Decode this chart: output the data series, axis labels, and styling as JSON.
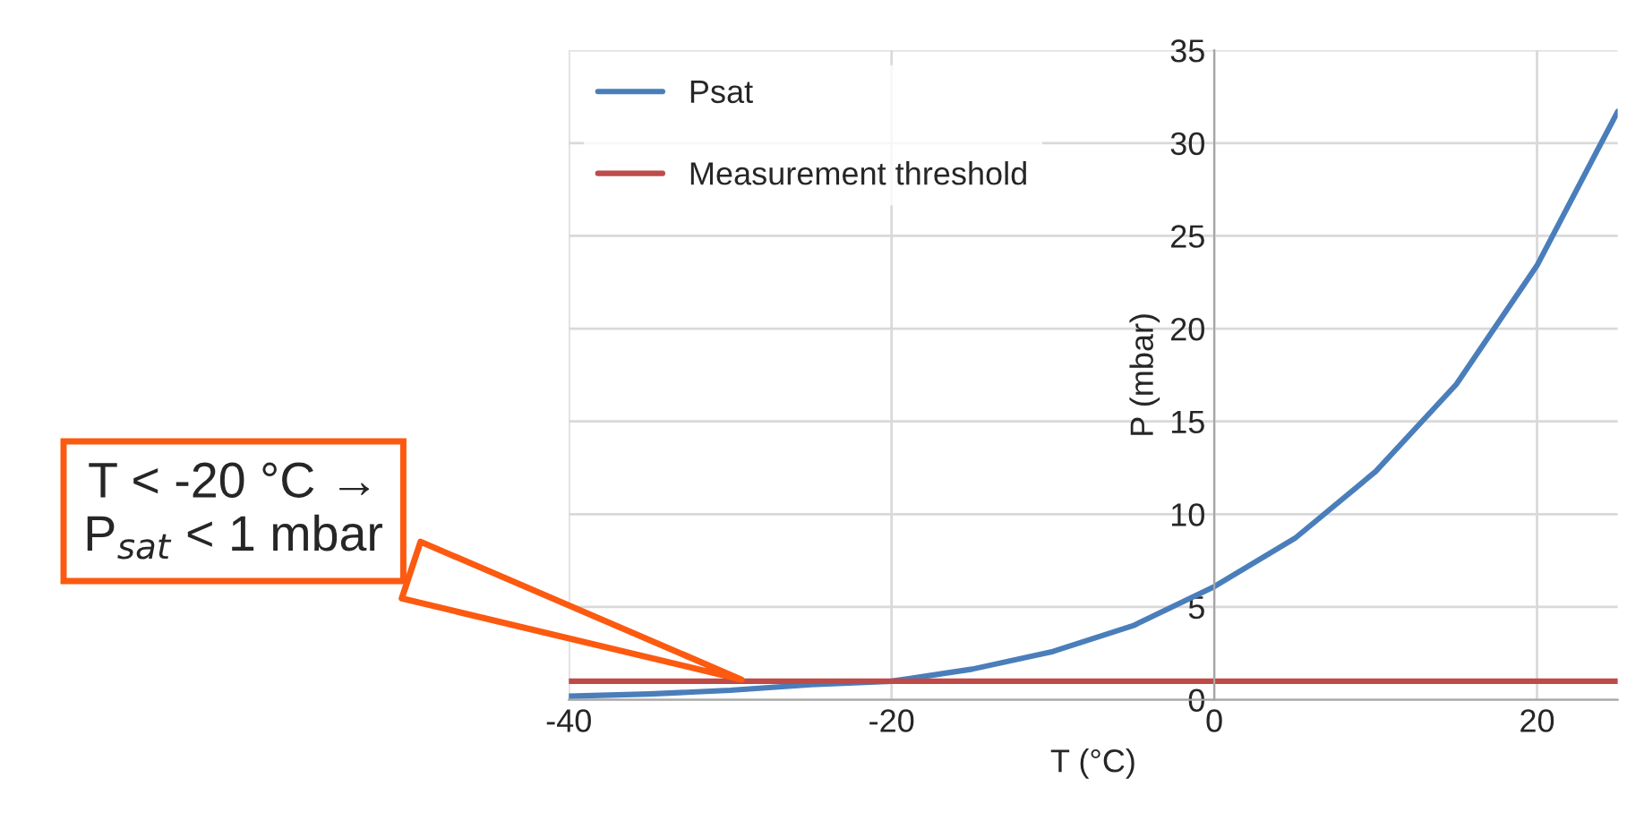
{
  "chart_data": {
    "type": "line",
    "xlabel": "T (°C)",
    "ylabel": "P (mbar)",
    "xlim": [
      -40,
      25
    ],
    "xticks": [
      -40,
      -20,
      0,
      20
    ],
    "ylim": [
      0,
      35
    ],
    "yticks": [
      0,
      5,
      10,
      15,
      20,
      25,
      30,
      35
    ],
    "grid": true,
    "legend": "top left",
    "series": [
      {
        "name": "Psat",
        "color": "#4a7ebb",
        "x": [
          -40,
          -35,
          -30,
          -25,
          -20,
          -15,
          -10,
          -5,
          0,
          5,
          10,
          15,
          20,
          25
        ],
        "values": [
          0.19,
          0.31,
          0.51,
          0.81,
          1.0,
          1.65,
          2.6,
          4.0,
          6.1,
          8.7,
          12.3,
          17.0,
          23.4,
          31.7
        ]
      },
      {
        "name": "Measurement threshold",
        "color": "#be4b48",
        "x": [
          -40,
          25
        ],
        "values": [
          1,
          1
        ]
      }
    ],
    "annotations": [
      {
        "text": "T < -20 °C →\nP$_{sat}$ < 1 mbar",
        "x": -29,
        "y": 1
      }
    ]
  }
}
